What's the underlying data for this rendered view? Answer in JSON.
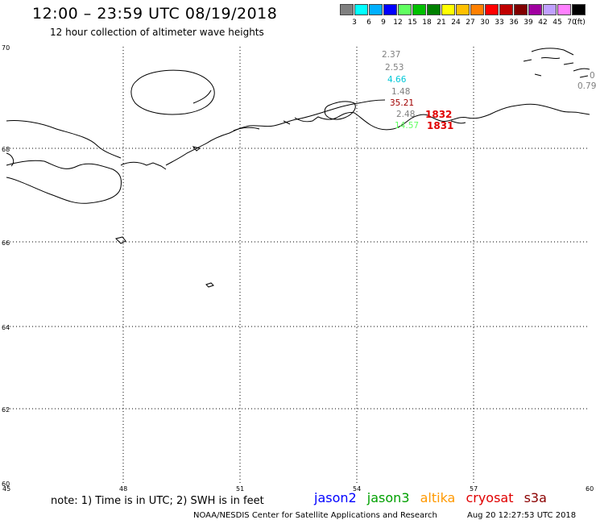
{
  "header": {
    "title": "12:00 – 23:59 UTC 08/19/2018",
    "subtitle": "12 hour collection of altimeter wave heights"
  },
  "legend": {
    "unit": "(ft)",
    "labels": [
      "3",
      "6",
      "9",
      "12",
      "15",
      "18",
      "21",
      "24",
      "27",
      "30",
      "33",
      "36",
      "39",
      "42",
      "45",
      "70"
    ],
    "colors": [
      "#808080",
      "#00ffff",
      "#00b0ff",
      "#0000ff",
      "#60ff60",
      "#00c000",
      "#008000",
      "#ffff00",
      "#ffc000",
      "#ff8000",
      "#ff0000",
      "#c00000",
      "#800000",
      "#a000a0",
      "#c0a0ff",
      "#ff80ff",
      "#000000"
    ]
  },
  "map": {
    "lat_labels": [
      "70",
      "68",
      "66",
      "64",
      "62",
      "60"
    ],
    "lon_labels": [
      "45",
      "48",
      "51",
      "54",
      "57",
      "60"
    ],
    "wave_heights": [
      {
        "text": "2.37",
        "color": "#808080"
      },
      {
        "text": "2.53",
        "color": "#808080"
      },
      {
        "text": "4.66",
        "color": "#00c8d8"
      },
      {
        "text": "1.48",
        "color": "#808080"
      },
      {
        "text": "35.21",
        "color": "#a00000"
      },
      {
        "text": "2.48",
        "color": "#808080"
      },
      {
        "text": "14.57",
        "color": "#60ff60"
      },
      {
        "text": "0.79",
        "color": "#808080"
      },
      {
        "text": "0",
        "color": "#808080"
      }
    ],
    "pass_times": [
      "1832",
      "1831"
    ]
  },
  "footer": {
    "note": "note:  1) Time is in UTC;  2) SWH is in feet",
    "satellites": [
      {
        "name": "jason2",
        "color": "#0000ff"
      },
      {
        "name": "jason3",
        "color": "#00a000"
      },
      {
        "name": "altika",
        "color": "#ff9900"
      },
      {
        "name": "cryosat",
        "color": "#e00000"
      },
      {
        "name": "s3a",
        "color": "#8b0000"
      }
    ],
    "credit": "NOAA/NESDIS Center for Satellite Applications and Research",
    "timestamp": "Aug 20 12:27:53 UTC 2018"
  }
}
